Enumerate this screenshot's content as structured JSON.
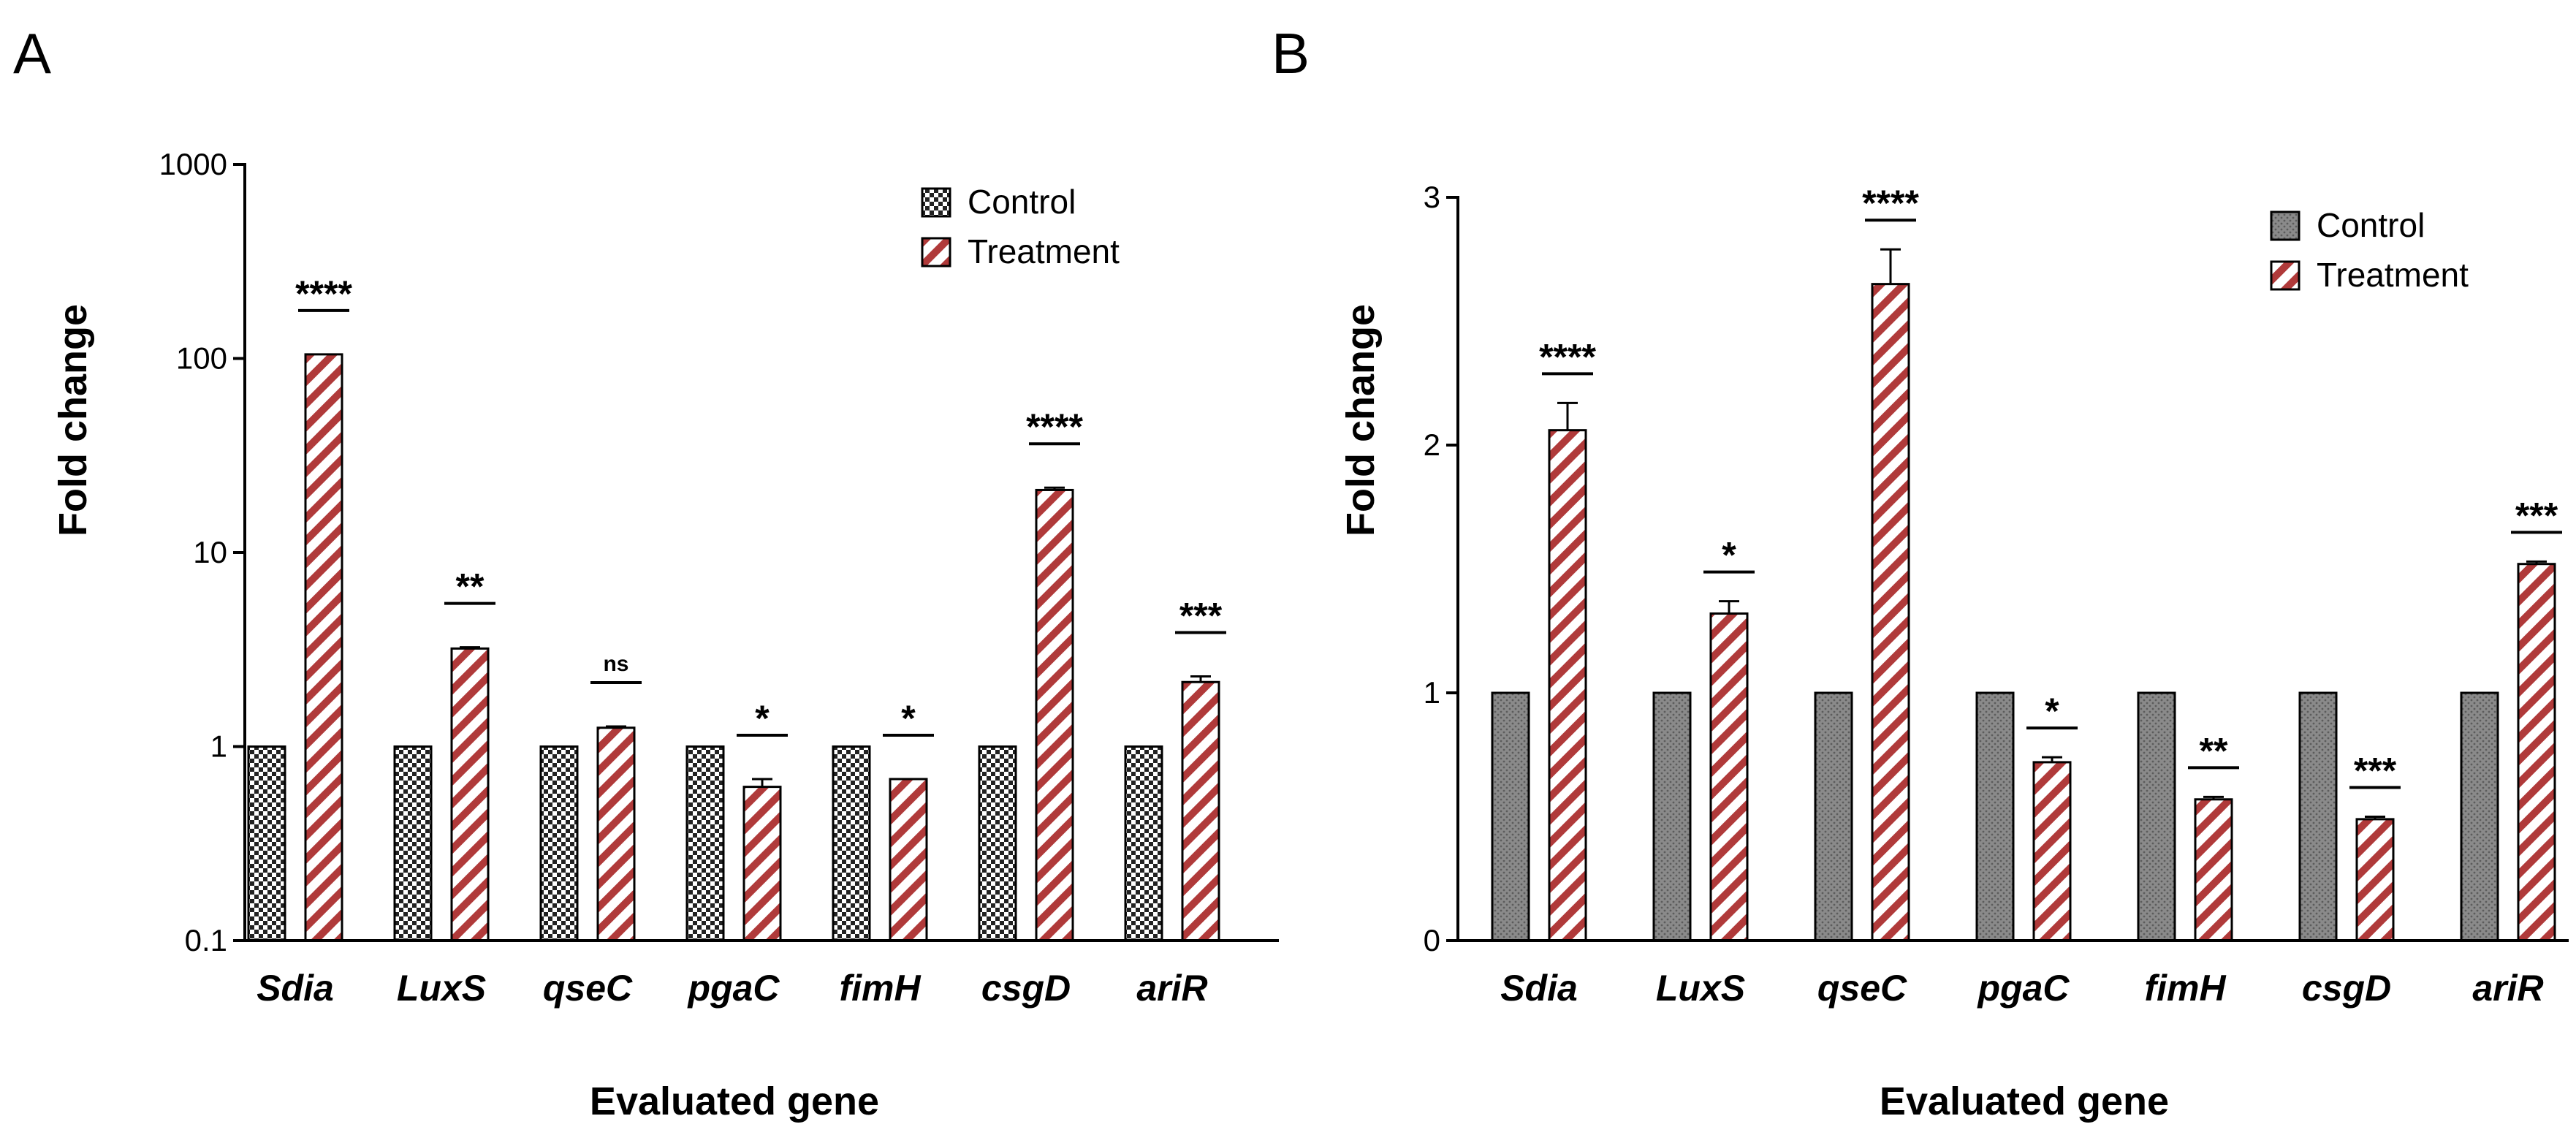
{
  "colors": {
    "control_fill_A": "#9a9a9a",
    "control_fill_B": "#808080",
    "treatment_stripe": "#b03a3a",
    "axis": "#000000"
  },
  "chart_data": [
    {
      "panel": "A",
      "type": "bar",
      "scale": "log",
      "xlabel": "Evaluated gene",
      "ylabel": "Fold change",
      "ylim": [
        0.1,
        1000
      ],
      "yticks": [
        "0.1",
        "1",
        "10",
        "100",
        "1000"
      ],
      "categories": [
        "Sdia",
        "LuxS",
        "qseC",
        "pgaC",
        "fimH",
        "csgD",
        "ariR"
      ],
      "series": [
        {
          "name": "Control",
          "pattern": "checker",
          "values": [
            1,
            1,
            1,
            1,
            1,
            1,
            1
          ],
          "errors": [
            0,
            0,
            0,
            0,
            0,
            0,
            0
          ]
        },
        {
          "name": "Treatment",
          "pattern": "stripes",
          "values": [
            105,
            3.2,
            1.25,
            0.62,
            0.68,
            21,
            2.15
          ],
          "errors": [
            0,
            0.05,
            0.02,
            0.06,
            0,
            0.6,
            0.15
          ]
        }
      ],
      "significance": [
        "****",
        "**",
        "ns",
        "*",
        "*",
        "****",
        "***"
      ],
      "legend": [
        "Control",
        "Treatment"
      ],
      "legend_position": "top-right"
    },
    {
      "panel": "B",
      "type": "bar",
      "scale": "linear",
      "xlabel": "Evaluated gene",
      "ylabel": "Fold change",
      "ylim": [
        0,
        3
      ],
      "yticks": [
        "0",
        "1",
        "2",
        "3"
      ],
      "categories": [
        "Sdia",
        "LuxS",
        "qseC",
        "pgaC",
        "fimH",
        "csgD",
        "ariR"
      ],
      "series": [
        {
          "name": "Control",
          "pattern": "dots",
          "values": [
            1,
            1,
            1,
            1,
            1,
            1,
            1
          ],
          "errors": [
            0,
            0,
            0,
            0,
            0,
            0,
            0
          ]
        },
        {
          "name": "Treatment",
          "pattern": "stripes",
          "values": [
            2.06,
            1.32,
            2.65,
            0.72,
            0.57,
            0.49,
            1.52
          ],
          "errors": [
            0.11,
            0.05,
            0.14,
            0.02,
            0.01,
            0.01,
            0.01
          ]
        }
      ],
      "significance": [
        "****",
        "*",
        "****",
        "*",
        "**",
        "***",
        "***"
      ],
      "legend": [
        "Control",
        "Treatment"
      ],
      "legend_position": "top-right"
    }
  ]
}
